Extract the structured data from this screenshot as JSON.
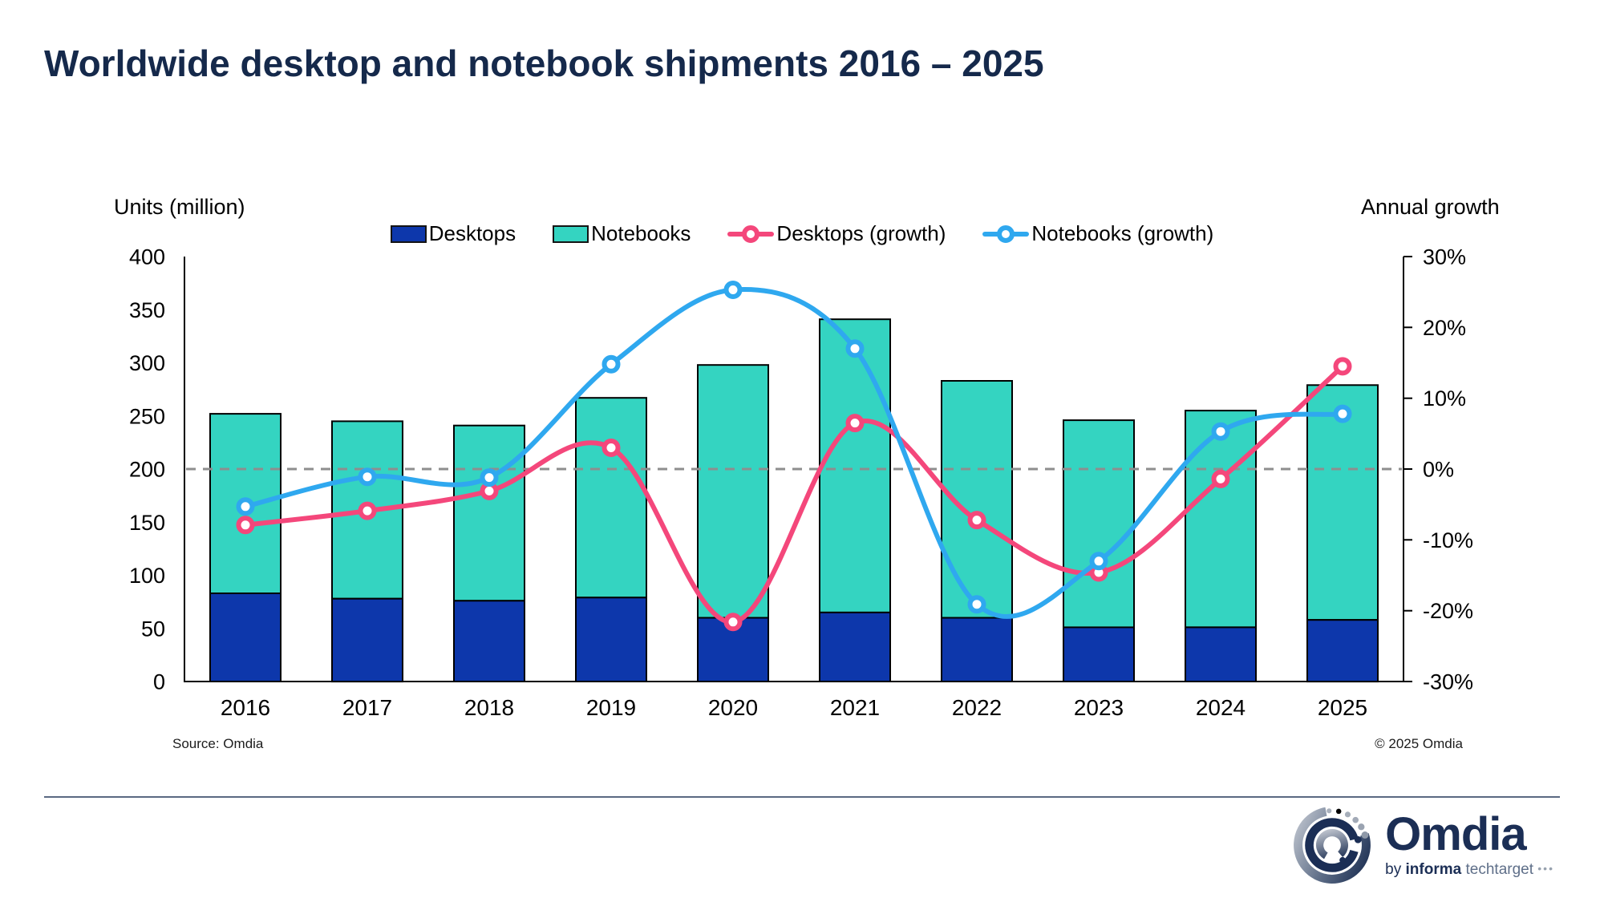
{
  "title": "Worldwide desktop and notebook shipments 2016 – 2025",
  "axes": {
    "left": {
      "title": "Units (million)",
      "ticks": [
        400,
        350,
        300,
        250,
        200,
        150,
        100,
        50,
        0
      ]
    },
    "right": {
      "title": "Annual growth",
      "ticks": [
        30,
        20,
        10,
        0,
        -10,
        -20,
        -30
      ],
      "tick_labels": [
        "30%",
        "20%",
        "10%",
        "0%",
        "-10%",
        "-20%",
        "-30%"
      ]
    }
  },
  "legend": {
    "items": [
      {
        "label": "Desktops",
        "marker": "swatch",
        "color": "#0d37ab"
      },
      {
        "label": "Notebooks",
        "marker": "swatch",
        "color": "#34d4c1"
      },
      {
        "label": "Desktops (growth)",
        "marker": "line-ring",
        "color": "#f4477b"
      },
      {
        "label": "Notebooks (growth)",
        "marker": "line-ring",
        "color": "#2fa8ef"
      }
    ]
  },
  "chart_data": {
    "type": "bar",
    "title": "Worldwide desktop and notebook shipments 2016 – 2025",
    "categories": [
      "2016",
      "2017",
      "2018",
      "2019",
      "2020",
      "2021",
      "2022",
      "2023",
      "2024",
      "2025"
    ],
    "series": [
      {
        "name": "Desktops",
        "type": "bar",
        "stacked": true,
        "axis": "left",
        "color": "#0d37ab",
        "values": [
          83,
          78,
          76,
          79,
          60,
          65,
          60,
          51,
          51,
          58
        ]
      },
      {
        "name": "Notebooks",
        "type": "bar",
        "stacked": true,
        "axis": "left",
        "color": "#34d4c1",
        "values": [
          169,
          167,
          165,
          188,
          238,
          276,
          223,
          195,
          204,
          221
        ]
      },
      {
        "name": "Desktops (growth)",
        "type": "line",
        "axis": "right",
        "unit": "%",
        "color": "#f4477b",
        "values": [
          -7.9,
          -5.9,
          -3.1,
          3.0,
          -21.6,
          6.5,
          -7.2,
          -14.6,
          -1.4,
          14.5
        ]
      },
      {
        "name": "Notebooks (growth)",
        "type": "line",
        "axis": "right",
        "unit": "%",
        "color": "#2fa8ef",
        "values": [
          -5.3,
          -1.1,
          -1.2,
          14.8,
          25.3,
          17.0,
          -19.1,
          -13.0,
          5.3,
          7.8
        ]
      }
    ],
    "left_axis": {
      "label": "Units (million)",
      "range": [
        0,
        400
      ],
      "tick_step": 50
    },
    "right_axis": {
      "label": "Annual growth",
      "range": [
        -30,
        30
      ],
      "tick_step": 10,
      "format": "percent"
    },
    "annotations": {
      "zero_growth_line": {
        "value": 0,
        "style": "dashed",
        "color": "#8e8e8e"
      }
    },
    "legend_position": "top",
    "grid": "off"
  },
  "footer": {
    "source": "Source: Omdia",
    "copyright": "© 2025 Omdia"
  },
  "logo": {
    "brand": "Omdia",
    "byline_by": "by",
    "byline_informa": "informa",
    "byline_techtarget": "techtarget",
    "byline_dots": "•••"
  },
  "colors": {
    "title_text": "#15294b",
    "desktop_bar": "#0d37ab",
    "notebook_bar": "#34d4c1",
    "desktop_growth_line": "#f4477b",
    "notebook_growth_line": "#2fa8ef",
    "zero_dashed_line": "#8e8e8e",
    "axis": "#000000",
    "divider": "#5a6982",
    "logo_navy": "#1b2e55",
    "logo_gray": "#97a1ae"
  }
}
